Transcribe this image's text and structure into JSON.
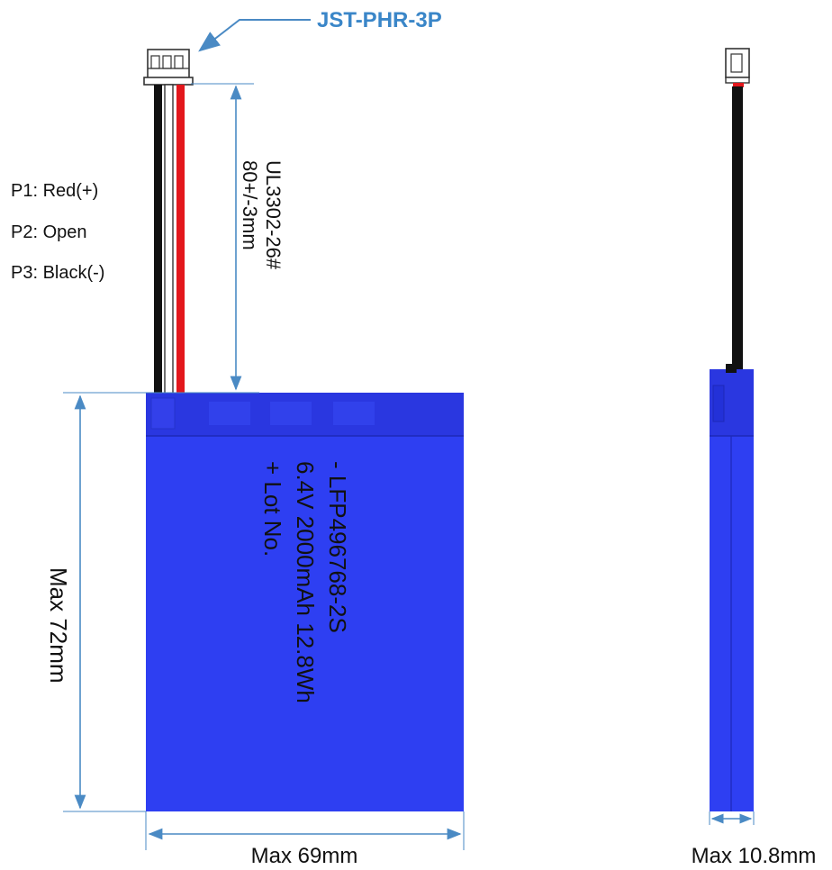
{
  "connector": {
    "name": "JST-PHR-3P"
  },
  "pins": [
    {
      "label": "P1: Red(+)"
    },
    {
      "label": "P2: Open"
    },
    {
      "label": "P3: Black(-)"
    }
  ],
  "wire": {
    "spec": "UL3302-26#",
    "length": "80+/-3mm"
  },
  "battery": {
    "line1": "- LFP496768-2S",
    "line2": "6.4V 2000mAh 12.8Wh",
    "line3": "+ Lot No."
  },
  "dimensions": {
    "height": "Max 72mm",
    "width": "Max 69mm",
    "thickness": "Max 10.8mm"
  },
  "colors": {
    "battery_body": "#2e3ff2",
    "battery_top": "#2a37e0",
    "dimension_line": "#4a8ac4",
    "wire_red": "#e3171c",
    "wire_black": "#111111",
    "wire_white": "#ffffff",
    "label_accent": "#3a86c8"
  }
}
